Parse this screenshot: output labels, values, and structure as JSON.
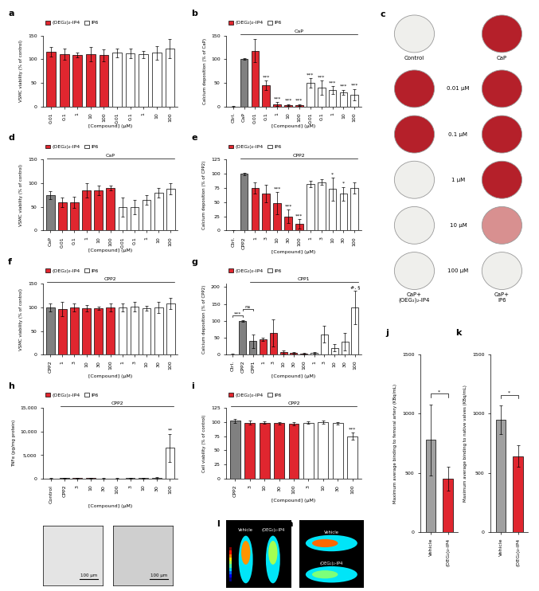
{
  "chart_data": [
    {
      "panel": "a",
      "type": "bar",
      "categories": [
        "0.01",
        "0.1",
        "1",
        "10",
        "100",
        "0.01",
        "0.1",
        "1",
        "10",
        "100"
      ],
      "series": [
        {
          "name": "(OEG₂)₂-IP4",
          "color": "#e0262f",
          "values": [
            115,
            110,
            108,
            110,
            108,
            null,
            null,
            null,
            null,
            null
          ],
          "errors": [
            10,
            12,
            5,
            15,
            12,
            null,
            null,
            null,
            null,
            null
          ]
        },
        {
          "name": "IP6",
          "color": "#ffffff",
          "values": [
            null,
            null,
            null,
            null,
            null,
            113,
            112,
            110,
            113,
            122
          ],
          "errors": [
            null,
            null,
            null,
            null,
            null,
            10,
            10,
            8,
            15,
            20
          ]
        }
      ],
      "ylabel": "VSMC viability (% of control)",
      "xlabel": "[Compound] (µM)",
      "ylim": [
        0,
        150
      ],
      "yticks": [
        0,
        50,
        100,
        150
      ],
      "legend": "upper left"
    },
    {
      "panel": "b",
      "type": "bar",
      "categories": [
        "Ctrl.",
        "CaP",
        "0.01",
        "0.1",
        "1",
        "10",
        "100",
        "0.01",
        "0.1",
        "1",
        "10",
        "100"
      ],
      "series": [
        {
          "color": "#808080",
          "values": [
            0,
            100,
            null,
            null,
            null,
            null,
            null,
            null,
            null,
            null,
            null,
            null
          ],
          "errors": [
            1,
            2,
            null,
            null,
            null,
            null,
            null,
            null,
            null,
            null,
            null,
            null
          ]
        },
        {
          "name": "(OEG₂)₂-IP4",
          "color": "#e0262f",
          "values": [
            null,
            null,
            118,
            45,
            5,
            3,
            3,
            null,
            null,
            null,
            null,
            null
          ],
          "errors": [
            null,
            null,
            25,
            10,
            4,
            2,
            2,
            null,
            null,
            null,
            null,
            null
          ]
        },
        {
          "name": "IP6",
          "color": "#ffffff",
          "values": [
            null,
            null,
            null,
            null,
            null,
            null,
            null,
            50,
            40,
            35,
            30,
            25
          ],
          "errors": [
            null,
            null,
            null,
            null,
            null,
            null,
            null,
            10,
            15,
            8,
            5,
            12
          ]
        }
      ],
      "annotations": [
        null,
        null,
        null,
        "***",
        "***",
        "***",
        "***",
        "***",
        "***",
        "***",
        "***",
        "***"
      ],
      "group_label": "CaP",
      "ylabel": "Calcium deposition (% of CaP)",
      "xlabel": "[Compound] (µM)",
      "ylim": [
        0,
        150
      ],
      "yticks": [
        0,
        50,
        100,
        150
      ],
      "legend": "upper left"
    },
    {
      "panel": "d",
      "type": "bar",
      "categories": [
        "CaP",
        "0.01",
        "0.1",
        "1",
        "10",
        "100",
        "0.01",
        "0.1",
        "1",
        "10",
        "100"
      ],
      "series": [
        {
          "color": "#808080",
          "values": [
            75,
            null,
            null,
            null,
            null,
            null,
            null,
            null,
            null,
            null,
            null
          ],
          "errors": [
            8,
            null,
            null,
            null,
            null,
            null,
            null,
            null,
            null,
            null,
            null
          ]
        },
        {
          "name": "(OEG₂)₂-IP4",
          "color": "#e0262f",
          "values": [
            null,
            60,
            60,
            85,
            85,
            90,
            null,
            null,
            null,
            null,
            null
          ],
          "errors": [
            null,
            10,
            12,
            15,
            10,
            5,
            null,
            null,
            null,
            null,
            null
          ]
        },
        {
          "name": "IP6",
          "color": "#ffffff",
          "values": [
            null,
            null,
            null,
            null,
            null,
            null,
            50,
            50,
            65,
            80,
            88
          ],
          "errors": [
            null,
            null,
            null,
            null,
            null,
            null,
            20,
            15,
            10,
            10,
            12
          ]
        }
      ],
      "group_label": "CaP",
      "ylabel": "VSMC viability (% of control)",
      "xlabel": "[Compound] (µM)",
      "ylim": [
        0,
        150
      ],
      "yticks": [
        0,
        50,
        100,
        150
      ],
      "legend": "upper left"
    },
    {
      "panel": "e",
      "type": "bar",
      "categories": [
        "Ctrl.",
        "CPP2",
        "1",
        "3",
        "10",
        "30",
        "100",
        "1",
        "3",
        "10",
        "30",
        "100"
      ],
      "series": [
        {
          "color": "#808080",
          "values": [
            0,
            100,
            null,
            null,
            null,
            null,
            null,
            null,
            null,
            null,
            null,
            null
          ],
          "errors": [
            1,
            2,
            null,
            null,
            null,
            null,
            null,
            null,
            null,
            null,
            null,
            null
          ]
        },
        {
          "name": "(OEG₂)₂-IP4",
          "color": "#e0262f",
          "values": [
            null,
            null,
            75,
            65,
            48,
            25,
            12,
            null,
            null,
            null,
            null,
            null
          ],
          "errors": [
            null,
            null,
            10,
            15,
            20,
            12,
            8,
            null,
            null,
            null,
            null,
            null
          ]
        },
        {
          "name": "IP6",
          "color": "#ffffff",
          "values": [
            null,
            null,
            null,
            null,
            null,
            null,
            null,
            82,
            85,
            73,
            65,
            75
          ],
          "errors": [
            null,
            null,
            null,
            null,
            null,
            null,
            null,
            5,
            5,
            20,
            12,
            10
          ]
        }
      ],
      "annotations": [
        null,
        null,
        null,
        null,
        "***",
        "***",
        "***",
        null,
        null,
        "*",
        "*",
        null
      ],
      "group_label": "CPP2",
      "ylabel": "Calcium deposition (% of CPP2)",
      "xlabel": "[Compound] (µM)",
      "ylim": [
        0,
        125
      ],
      "yticks": [
        0,
        25,
        50,
        75,
        100,
        125
      ],
      "legend": "upper left"
    },
    {
      "panel": "f",
      "type": "bar",
      "categories": [
        "CPP2",
        "1",
        "3",
        "10",
        "30",
        "100",
        "1",
        "3",
        "10",
        "30",
        "100"
      ],
      "series": [
        {
          "color": "#808080",
          "values": [
            100,
            null,
            null,
            null,
            null,
            null,
            null,
            null,
            null,
            null,
            null
          ],
          "errors": [
            8,
            null,
            null,
            null,
            null,
            null,
            null,
            null,
            null,
            null,
            null
          ]
        },
        {
          "name": "(OEG₂)₂-IP4",
          "color": "#e0262f",
          "values": [
            null,
            97,
            100,
            98,
            98,
            100,
            null,
            null,
            null,
            null,
            null
          ],
          "errors": [
            null,
            15,
            8,
            6,
            4,
            8,
            null,
            null,
            null,
            null,
            null
          ]
        },
        {
          "name": "IP6",
          "color": "#ffffff",
          "values": [
            null,
            null,
            null,
            null,
            null,
            null,
            100,
            102,
            98,
            100,
            108
          ],
          "errors": [
            null,
            null,
            null,
            null,
            null,
            null,
            8,
            10,
            5,
            12,
            12
          ]
        }
      ],
      "group_label": "CPP2",
      "ylabel": "VSMC viability (% of control)",
      "xlabel": "[Compound] (µM)",
      "ylim": [
        0,
        150
      ],
      "yticks": [
        0,
        50,
        100,
        150
      ],
      "legend": "upper left"
    },
    {
      "panel": "g",
      "type": "bar",
      "categories": [
        "Ctrl.",
        "CPP2",
        "CPP1",
        "1",
        "3",
        "10",
        "30",
        "100",
        "1",
        "3",
        "10",
        "30",
        "100"
      ],
      "series": [
        {
          "color": "#808080",
          "values": [
            0,
            100,
            40,
            null,
            null,
            null,
            null,
            null,
            null,
            null,
            null,
            null,
            null
          ],
          "errors": [
            2,
            3,
            20,
            null,
            null,
            null,
            null,
            null,
            null,
            null,
            null,
            null,
            null
          ]
        },
        {
          "name": "(OEG₂)₂-IP4",
          "color": "#e0262f",
          "values": [
            null,
            null,
            null,
            45,
            65,
            8,
            5,
            3,
            null,
            null,
            null,
            null,
            null
          ],
          "errors": [
            null,
            null,
            null,
            5,
            40,
            5,
            3,
            2,
            null,
            null,
            null,
            null,
            null
          ]
        },
        {
          "name": "IP6",
          "color": "#ffffff",
          "values": [
            null,
            null,
            null,
            null,
            null,
            null,
            null,
            null,
            5,
            60,
            20,
            38,
            140
          ],
          "errors": [
            null,
            null,
            null,
            null,
            null,
            null,
            null,
            null,
            3,
            25,
            10,
            25,
            50
          ]
        }
      ],
      "annotations": [
        null,
        null,
        null,
        null,
        null,
        null,
        null,
        null,
        null,
        null,
        null,
        null,
        "#, §"
      ],
      "pair_annotations": [
        {
          "between": [
            "Ctrl.",
            "CPP2"
          ],
          "text": "***"
        },
        {
          "between": [
            "CPP2",
            "CPP1"
          ],
          "text": "ns"
        }
      ],
      "group_label": "CPP1",
      "ylabel": "Calcium deposition (% of CPP2)",
      "xlabel": "[Compound] (µM)",
      "ylim": [
        0,
        210
      ],
      "yticks": [
        0,
        50,
        100,
        150,
        200
      ],
      "legend": "upper left"
    },
    {
      "panel": "h",
      "type": "bar",
      "categories": [
        "Control",
        "CPP2",
        "3",
        "10",
        "30",
        "100",
        "3",
        "10",
        "30",
        "100"
      ],
      "series": [
        {
          "color": "#505050",
          "values": [
            80,
            100,
            null,
            null,
            null,
            null,
            null,
            null,
            null,
            null
          ],
          "errors": [
            40,
            60,
            null,
            null,
            null,
            null,
            null,
            null,
            null,
            null
          ]
        },
        {
          "name": "(OEG₂)₂-IP4",
          "color": "#e0262f",
          "values": [
            null,
            null,
            90,
            90,
            80,
            85,
            null,
            null,
            null,
            null
          ],
          "errors": [
            null,
            null,
            40,
            30,
            30,
            30,
            null,
            null,
            null,
            null
          ]
        },
        {
          "name": "IP6",
          "color": "#ffffff",
          "values": [
            null,
            null,
            null,
            null,
            null,
            null,
            95,
            90,
            220,
            6500
          ],
          "errors": [
            null,
            null,
            null,
            null,
            null,
            null,
            40,
            50,
            150,
            3000
          ]
        }
      ],
      "annotations": [
        null,
        null,
        null,
        null,
        null,
        null,
        null,
        null,
        null,
        "**"
      ],
      "group_label": "CPP2",
      "ylabel": "TNFα (pg/mg protein)",
      "xlabel": "[Compound] (µM)",
      "ylim": [
        0,
        15000
      ],
      "yticks": [
        0,
        {
          "value": 5000,
          "label": "5,000"
        },
        {
          "value": 10000,
          "label": "10,000"
        },
        {
          "value": 15000,
          "label": "15,000"
        }
      ],
      "legend": "upper left"
    },
    {
      "panel": "i",
      "type": "bar",
      "categories": [
        "CPP2",
        "3",
        "10",
        "30",
        "100",
        "3",
        "10",
        "30",
        "100"
      ],
      "series": [
        {
          "color": "#808080",
          "values": [
            102,
            null,
            null,
            null,
            null,
            null,
            null,
            null,
            null
          ],
          "errors": [
            3,
            null,
            null,
            null,
            null,
            null,
            null,
            null,
            null
          ]
        },
        {
          "name": "(OEG₂)₂-IP4",
          "color": "#e0262f",
          "values": [
            null,
            99,
            99,
            98,
            97,
            null,
            null,
            null,
            null
          ],
          "errors": [
            null,
            3,
            2,
            2,
            3,
            null,
            null,
            null,
            null
          ]
        },
        {
          "name": "IP6",
          "color": "#ffffff",
          "values": [
            null,
            null,
            null,
            null,
            null,
            99,
            100,
            98,
            75
          ],
          "errors": [
            null,
            null,
            null,
            null,
            null,
            2,
            3,
            2,
            6
          ]
        }
      ],
      "annotations": [
        null,
        null,
        null,
        null,
        null,
        null,
        null,
        null,
        "***"
      ],
      "group_label": "CPP2",
      "ylabel": "Cell viability (% of control)",
      "xlabel": "[Compound] (µM)",
      "ylim": [
        0,
        125
      ],
      "yticks": [
        0,
        25,
        50,
        75,
        100,
        125
      ],
      "legend": "upper left"
    },
    {
      "panel": "j",
      "type": "bar",
      "categories": [
        "Vehicle",
        "(OEG₂)₂-IP4"
      ],
      "values": [
        780,
        450
      ],
      "errors": [
        300,
        100
      ],
      "colors": [
        "#a0a0a0",
        "#e0262f"
      ],
      "pair_annotations": [
        {
          "between": [
            "Vehicle",
            "(OEG₂)₂-IP4"
          ],
          "text": "*"
        }
      ],
      "ylabel": "Maximum average binding to femoral artery (KBq/mL)",
      "ylim": [
        0,
        1500
      ],
      "yticks": [
        0,
        500,
        1000,
        1500
      ]
    },
    {
      "panel": "k",
      "type": "bar",
      "categories": [
        "Vehicle",
        "(OEG₂)₂-IP4"
      ],
      "values": [
        950,
        640
      ],
      "errors": [
        120,
        90
      ],
      "colors": [
        "#a0a0a0",
        "#e0262f"
      ],
      "pair_annotations": [
        {
          "between": [
            "Vehicle",
            "(OEG₂)₂-IP4"
          ],
          "text": "*"
        }
      ],
      "ylabel": "Maximum average binding to native valves (KBq/mL)",
      "ylim": [
        0,
        1500
      ],
      "yticks": [
        0,
        500,
        1000,
        1500
      ]
    }
  ],
  "image_panels": {
    "c": {
      "panel": "c",
      "column_labels": [
        "Control",
        "CaP"
      ],
      "row_labels": [
        "0.01 µM",
        "0.1 µM",
        "1 µM",
        "10 µM",
        "100 µM"
      ],
      "bottom_labels": [
        "CaP+\n(OEG₂)₂-IP4",
        "CaP+\nIP6"
      ]
    },
    "h_micrographs": {
      "scale_bars": [
        "100 µm",
        "100 µm"
      ]
    },
    "l": {
      "panel": "l",
      "labels": [
        "Vehicle",
        "(OEG₂)₂-IP4"
      ]
    },
    "m": {
      "panel": "m",
      "labels": [
        "Vehicle",
        "(OEG₂)₂-IP4"
      ]
    }
  }
}
